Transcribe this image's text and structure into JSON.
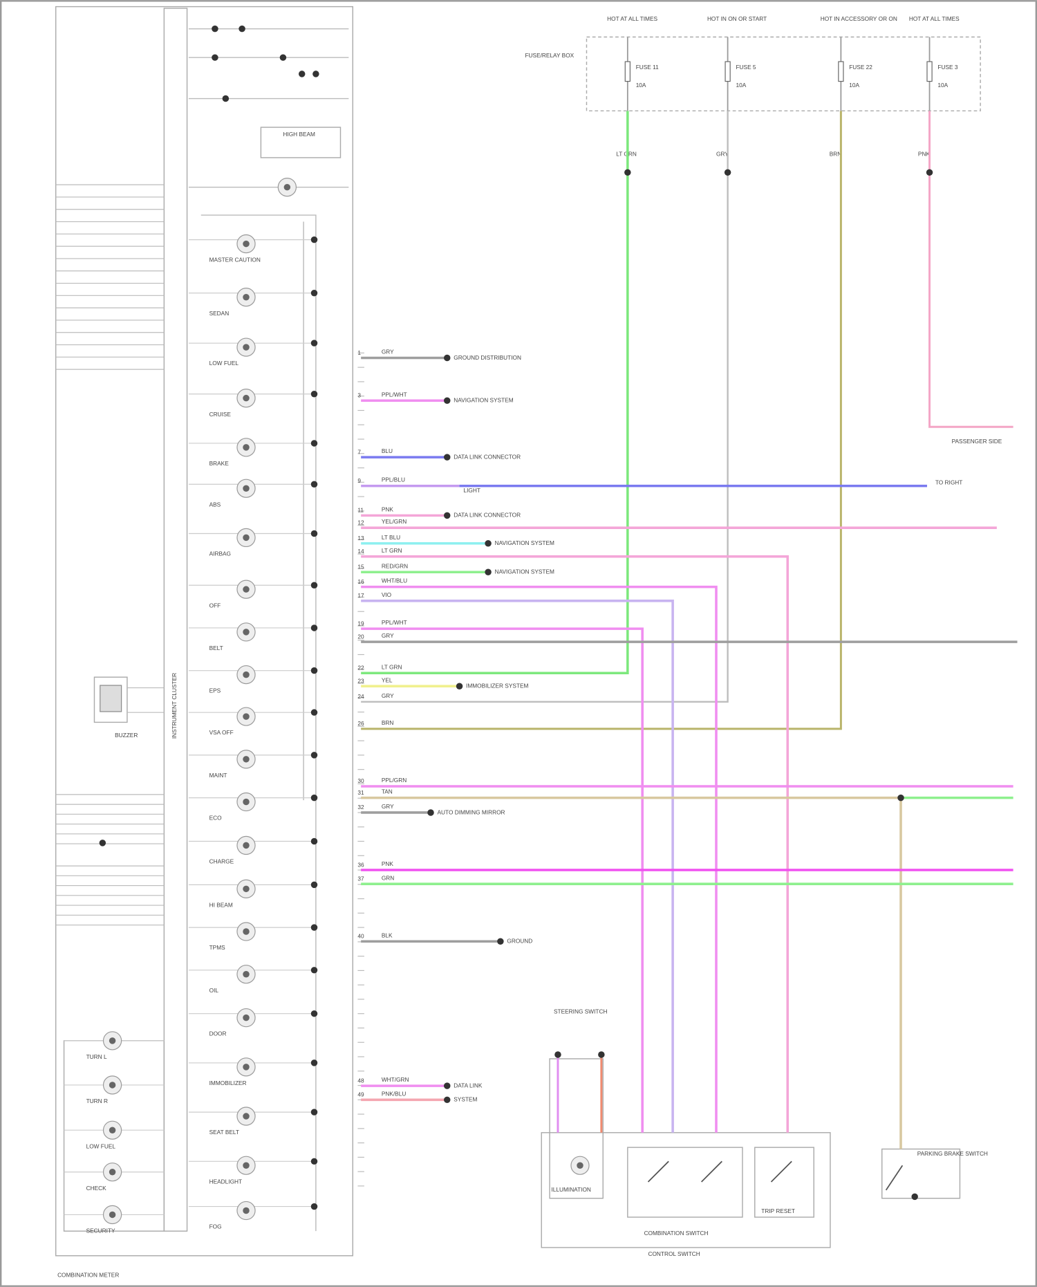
{
  "diagram": {
    "footer_note": "COMBINATION METER",
    "module_label": "INSTRUMENT CLUSTER",
    "buzzer_label": "BUZZER",
    "power_sources": [
      {
        "label": "HOT AT ALL TIMES",
        "fuse": "FUSE 11",
        "rating": "10A",
        "wire": "LT GRN",
        "color": "#7de87d"
      },
      {
        "label": "HOT IN ON OR START",
        "fuse": "FUSE 5",
        "rating": "10A",
        "wire": "GRY",
        "color": "#bdbdbd"
      },
      {
        "label": "HOT IN ACCESSORY OR ON",
        "fuse": "FUSE 22",
        "rating": "10A",
        "wire": "BRN",
        "color": "#b9b46a"
      },
      {
        "label": "HOT AT ALL TIMES",
        "fuse": "FUSE 3",
        "rating": "10A",
        "wire": "PNK",
        "color": "#f4a6c6"
      }
    ],
    "fuse_box_label": "FUSE/RELAY BOX",
    "wires": [
      {
        "pin": "1",
        "label": "GRY",
        "color": "#9e9e9e",
        "dest": "GROUND DISTRIBUTION"
      },
      {
        "pin": "3",
        "label": "PPL/WHT",
        "color": "#f08ef0",
        "dest": "NAVIGATION SYSTEM"
      },
      {
        "pin": "7",
        "label": "BLU",
        "color": "#7a7af0",
        "dest": "DATA LINK CONNECTOR"
      },
      {
        "pin": "9",
        "label": "PPL/BLU",
        "color": "#c49af0",
        "dest": "LIGHT"
      },
      {
        "pin": "11",
        "label": "PNK",
        "color": "#f4a6d8",
        "dest": "DATA LINK CONNECTOR"
      },
      {
        "pin": "12",
        "label": "YEL/GRN",
        "color": "#f4a6d8",
        "dest": ""
      },
      {
        "pin": "13",
        "label": "LT BLU",
        "color": "#8ef0f0",
        "dest": "NAVIGATION SYSTEM"
      },
      {
        "pin": "14",
        "label": "LT GRN",
        "color": "#f4a6d8",
        "dest": ""
      },
      {
        "pin": "15",
        "label": "RED/GRN",
        "color": "#8ef08e",
        "dest": "NAVIGATION SYSTEM"
      },
      {
        "pin": "16",
        "label": "WHT/BLU",
        "color": "#f08ef0",
        "dest": ""
      },
      {
        "pin": "17",
        "label": "VIO",
        "color": "#c8b4f0",
        "dest": ""
      },
      {
        "pin": "19",
        "label": "PPL/WHT",
        "color": "#f08ef0",
        "dest": ""
      },
      {
        "pin": "20",
        "label": "GRY",
        "color": "#9e9e9e",
        "dest": ""
      },
      {
        "pin": "22",
        "label": "LT GRN",
        "color": "#8ef08e",
        "dest": ""
      },
      {
        "pin": "23",
        "label": "YEL",
        "color": "#f0f08e",
        "dest": "IMMOBILIZER SYSTEM"
      },
      {
        "pin": "24",
        "label": "GRY",
        "color": "#cfcfcf",
        "dest": ""
      },
      {
        "pin": "26",
        "label": "BRN",
        "color": "#b9b46a",
        "dest": ""
      },
      {
        "pin": "30",
        "label": "PPL/GRN",
        "color": "#f08ef0",
        "dest": ""
      },
      {
        "pin": "31",
        "label": "TAN",
        "color": "#d8c8a0",
        "dest": ""
      },
      {
        "pin": "32",
        "label": "GRY",
        "color": "#9e9e9e",
        "dest": "AUTO DIMMING MIRROR"
      },
      {
        "pin": "36",
        "label": "PNK",
        "color": "#f050f0",
        "dest": ""
      },
      {
        "pin": "37",
        "label": "GRN",
        "color": "#8ef08e",
        "dest": ""
      },
      {
        "pin": "40",
        "label": "BLK",
        "color": "#9e9e9e",
        "dest": "GROUND"
      },
      {
        "pin": "48",
        "label": "WHT/GRN",
        "color": "#f08ef0",
        "dest": "DATA LINK"
      },
      {
        "pin": "49",
        "label": "PNK/BLU",
        "color": "#f4a6b0",
        "dest": "SYSTEM"
      }
    ],
    "lamps": [
      "MASTER CAUTION",
      "SEDAN",
      "LOW FUEL",
      "CRUISE",
      "BRAKE",
      "ABS",
      "AIRBAG",
      "OFF",
      "BELT",
      "EPS",
      "VSA OFF",
      "MAINT",
      "ECO",
      "CHARGE",
      "HI BEAM",
      "TPMS",
      "OIL",
      "DOOR",
      "IMMOBILIZER",
      "SEAT BELT",
      "HEADLIGHT",
      "FOG",
      "HIGH BEAM"
    ],
    "left_lamps": [
      "TURN L",
      "TURN R",
      "LOW FUEL",
      "CHECK",
      "SECURITY"
    ],
    "right_labels": [
      "PASSENGER SIDE",
      "TO RIGHT",
      "STEERING SWITCH"
    ],
    "bottom": {
      "steering_label": "STEERING SWITCH",
      "illumination_label": "ILLUMINATION",
      "combination_switch": "COMBINATION SWITCH",
      "control_switch": "CONTROL SWITCH",
      "trip_reset": "TRIP RESET",
      "parking_brake": "PARKING BRAKE SWITCH"
    }
  }
}
